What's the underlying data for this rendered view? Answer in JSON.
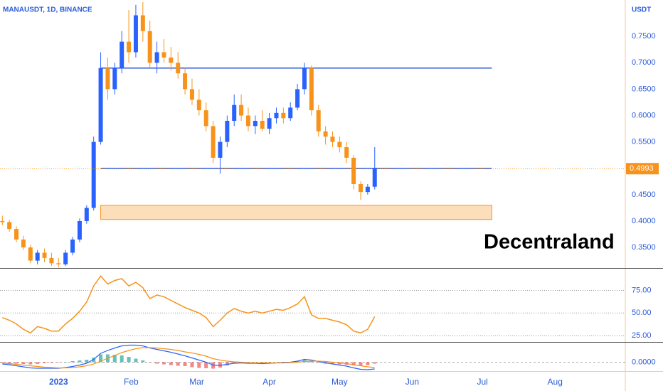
{
  "chart_data": [
    {
      "type": "candlestick",
      "title": "MANAUSDT, 1D, BINANCE",
      "y_axis_label": "USDT",
      "annotation": "Decentraland",
      "up_color": "#2962ff",
      "down_color": "#f7931a",
      "x": [
        -24,
        -21,
        -18,
        -15,
        -12,
        -9,
        -6,
        -3,
        0,
        3,
        6,
        9,
        12,
        15,
        18,
        21,
        24,
        27,
        30,
        33,
        36,
        39,
        42,
        45,
        48,
        51,
        54,
        57,
        60,
        63,
        66,
        69,
        72,
        75,
        78,
        81,
        84,
        87,
        90,
        93,
        96,
        99,
        102,
        105,
        108,
        111,
        114,
        117,
        120,
        123,
        126,
        129,
        132,
        135
      ],
      "open": [
        0.4,
        0.398,
        0.385,
        0.365,
        0.35,
        0.325,
        0.34,
        0.33,
        0.32,
        0.318,
        0.34,
        0.365,
        0.4,
        0.425,
        0.55,
        0.69,
        0.65,
        0.69,
        0.74,
        0.72,
        0.79,
        0.76,
        0.7,
        0.72,
        0.71,
        0.7,
        0.68,
        0.65,
        0.63,
        0.61,
        0.58,
        0.52,
        0.55,
        0.59,
        0.62,
        0.6,
        0.58,
        0.59,
        0.575,
        0.595,
        0.605,
        0.595,
        0.615,
        0.65,
        0.69,
        0.61,
        0.57,
        0.56,
        0.55,
        0.54,
        0.52,
        0.47,
        0.455,
        0.465
      ],
      "high": [
        0.41,
        0.402,
        0.39,
        0.372,
        0.355,
        0.345,
        0.348,
        0.34,
        0.33,
        0.345,
        0.37,
        0.405,
        0.43,
        0.56,
        0.72,
        0.71,
        0.7,
        0.76,
        0.8,
        0.81,
        0.815,
        0.78,
        0.74,
        0.745,
        0.73,
        0.72,
        0.69,
        0.67,
        0.65,
        0.625,
        0.59,
        0.56,
        0.6,
        0.64,
        0.64,
        0.615,
        0.6,
        0.61,
        0.605,
        0.615,
        0.615,
        0.625,
        0.66,
        0.7,
        0.695,
        0.62,
        0.58,
        0.57,
        0.56,
        0.55,
        0.525,
        0.475,
        0.47,
        0.54
      ],
      "low": [
        0.392,
        0.38,
        0.36,
        0.345,
        0.32,
        0.318,
        0.322,
        0.315,
        0.312,
        0.315,
        0.335,
        0.36,
        0.395,
        0.42,
        0.545,
        0.63,
        0.64,
        0.68,
        0.7,
        0.71,
        0.74,
        0.69,
        0.68,
        0.7,
        0.685,
        0.67,
        0.64,
        0.62,
        0.6,
        0.57,
        0.51,
        0.49,
        0.54,
        0.58,
        0.59,
        0.57,
        0.565,
        0.57,
        0.565,
        0.585,
        0.585,
        0.59,
        0.61,
        0.64,
        0.6,
        0.56,
        0.545,
        0.54,
        0.53,
        0.51,
        0.46,
        0.44,
        0.45,
        0.46
      ],
      "close": [
        0.398,
        0.385,
        0.365,
        0.35,
        0.325,
        0.34,
        0.33,
        0.32,
        0.318,
        0.34,
        0.365,
        0.4,
        0.425,
        0.55,
        0.69,
        0.65,
        0.69,
        0.74,
        0.72,
        0.79,
        0.76,
        0.7,
        0.72,
        0.71,
        0.7,
        0.68,
        0.65,
        0.63,
        0.61,
        0.58,
        0.52,
        0.55,
        0.59,
        0.62,
        0.6,
        0.58,
        0.59,
        0.575,
        0.595,
        0.605,
        0.595,
        0.615,
        0.65,
        0.69,
        0.61,
        0.57,
        0.56,
        0.55,
        0.54,
        0.52,
        0.47,
        0.455,
        0.465,
        0.4993
      ],
      "levels": [
        {
          "value": 0.69,
          "start": 18,
          "end": 185,
          "color": "#2955d0"
        },
        {
          "value": 0.5,
          "start": 18,
          "end": 185,
          "color": "#2955d0"
        }
      ],
      "zone": {
        "low": 0.403,
        "high": 0.43,
        "start": 18,
        "end": 185,
        "color": "#f7931a"
      },
      "xlim": [
        -25,
        242
      ],
      "ylim": [
        0.311,
        0.819
      ],
      "yticks": [
        {
          "value": 0.35,
          "label": "0.3500"
        },
        {
          "value": 0.4,
          "label": "0.4000"
        },
        {
          "value": 0.45,
          "label": "0.4500"
        },
        {
          "value": 0.5,
          "label": "0.5000"
        },
        {
          "value": 0.55,
          "label": "0.5500"
        },
        {
          "value": 0.6,
          "label": "0.6000"
        },
        {
          "value": 0.65,
          "label": "0.6500"
        },
        {
          "value": 0.7,
          "label": "0.7000"
        },
        {
          "value": 0.75,
          "label": "0.7500"
        }
      ]
    },
    {
      "type": "line",
      "color": "#f7931a",
      "grid": true,
      "x": [
        -24,
        -21,
        -18,
        -15,
        -12,
        -9,
        -6,
        -3,
        0,
        3,
        6,
        9,
        12,
        15,
        18,
        21,
        24,
        27,
        30,
        33,
        36,
        39,
        42,
        45,
        48,
        51,
        54,
        57,
        60,
        63,
        66,
        69,
        72,
        75,
        78,
        81,
        84,
        87,
        90,
        93,
        96,
        99,
        102,
        105,
        108,
        111,
        114,
        117,
        120,
        123,
        126,
        129,
        132,
        135
      ],
      "values": [
        45,
        42,
        38,
        32,
        28,
        35,
        33,
        30,
        30,
        38,
        44,
        52,
        62,
        80,
        91,
        82,
        86,
        88,
        80,
        84,
        78,
        66,
        70,
        68,
        64,
        60,
        56,
        53,
        50,
        45,
        35,
        42,
        50,
        55,
        52,
        50,
        52,
        50,
        52,
        54,
        53,
        56,
        60,
        68,
        48,
        44,
        44,
        42,
        40,
        37,
        30,
        28,
        32,
        46
      ],
      "xlim": [
        -25,
        242
      ],
      "ylim": [
        18,
        99
      ],
      "yticks": [
        {
          "value": 25,
          "label": "25.00"
        },
        {
          "value": 50,
          "label": "50.00"
        },
        {
          "value": 75,
          "label": "75.00"
        }
      ]
    },
    {
      "type": "macd",
      "macd_color": "#2962ff",
      "signal_color": "#f7931a",
      "up_color": "#26a69a",
      "down_color": "#ef5350",
      "x": [
        -24,
        -21,
        -18,
        -15,
        -12,
        -9,
        -6,
        -3,
        0,
        3,
        6,
        9,
        12,
        15,
        18,
        21,
        24,
        27,
        30,
        33,
        36,
        39,
        42,
        45,
        48,
        51,
        54,
        57,
        60,
        63,
        66,
        69,
        72,
        75,
        78,
        81,
        84,
        87,
        90,
        93,
        96,
        99,
        102,
        105,
        108,
        111,
        114,
        117,
        120,
        123,
        126,
        129,
        132,
        135
      ],
      "macd": [
        -0.005,
        -0.007,
        -0.01,
        -0.013,
        -0.016,
        -0.017,
        -0.017,
        -0.017,
        -0.017,
        -0.015,
        -0.012,
        -0.008,
        -0.003,
        0.008,
        0.025,
        0.033,
        0.04,
        0.046,
        0.048,
        0.048,
        0.046,
        0.04,
        0.036,
        0.032,
        0.028,
        0.023,
        0.018,
        0.012,
        0.006,
        0.0,
        -0.008,
        -0.009,
        -0.006,
        -0.003,
        -0.002,
        -0.003,
        -0.003,
        -0.004,
        -0.003,
        -0.002,
        -0.001,
        0.0,
        0.003,
        0.008,
        0.006,
        0.002,
        -0.002,
        -0.005,
        -0.008,
        -0.011,
        -0.016,
        -0.02,
        -0.021,
        -0.019
      ],
      "signal": [
        -0.003,
        -0.004,
        -0.006,
        -0.008,
        -0.01,
        -0.012,
        -0.014,
        -0.015,
        -0.016,
        -0.016,
        -0.015,
        -0.013,
        -0.01,
        -0.005,
        0.003,
        0.011,
        0.019,
        0.027,
        0.033,
        0.038,
        0.041,
        0.041,
        0.04,
        0.038,
        0.036,
        0.033,
        0.029,
        0.026,
        0.022,
        0.017,
        0.01,
        0.006,
        0.003,
        0.001,
        0.0,
        -0.001,
        -0.002,
        -0.002,
        -0.002,
        -0.002,
        -0.002,
        -0.001,
        0.0,
        0.002,
        0.003,
        0.003,
        0.002,
        0.0,
        -0.002,
        -0.004,
        -0.007,
        -0.01,
        -0.013,
        -0.015
      ],
      "histogram": [
        -0.002,
        -0.003,
        -0.004,
        -0.005,
        -0.006,
        -0.005,
        -0.003,
        -0.002,
        -0.001,
        0.001,
        0.003,
        0.005,
        0.007,
        0.013,
        0.022,
        0.022,
        0.021,
        0.019,
        0.015,
        0.01,
        0.005,
        -0.001,
        -0.004,
        -0.006,
        -0.008,
        -0.01,
        -0.011,
        -0.014,
        -0.016,
        -0.017,
        -0.018,
        -0.015,
        -0.009,
        -0.004,
        -0.002,
        -0.002,
        -0.001,
        -0.002,
        -0.001,
        0.0,
        0.001,
        0.001,
        0.003,
        0.006,
        0.003,
        -0.001,
        -0.004,
        -0.005,
        -0.006,
        -0.007,
        -0.009,
        -0.01,
        -0.008,
        -0.004
      ],
      "xlim": [
        -25,
        242
      ],
      "ylim": [
        -0.025,
        0.055
      ],
      "yticks": [
        {
          "value": 0,
          "label": "0.0000"
        }
      ],
      "xticks": [
        {
          "value": 0,
          "label": "2023"
        },
        {
          "value": 31,
          "label": "Feb"
        },
        {
          "value": 59,
          "label": "Mar"
        },
        {
          "value": 90,
          "label": "Apr"
        },
        {
          "value": 120,
          "label": "May"
        },
        {
          "value": 151,
          "label": "Jun"
        },
        {
          "value": 181,
          "label": "Jul"
        },
        {
          "value": 212,
          "label": "Aug"
        }
      ]
    }
  ]
}
